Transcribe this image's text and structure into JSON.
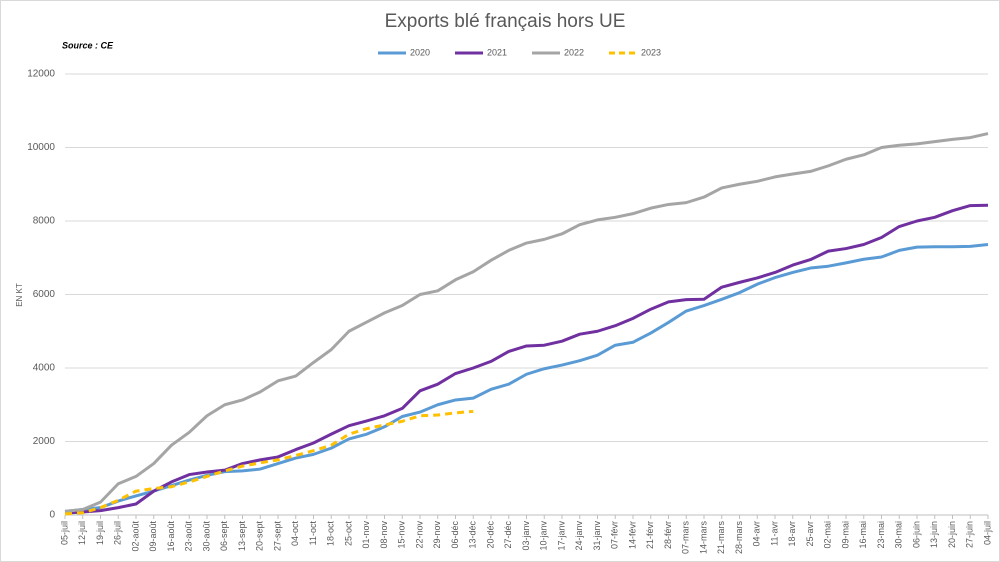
{
  "chart_data": {
    "type": "line",
    "title": "Exports blé français hors UE",
    "subtitle": "Source : CE",
    "y_label": "EN KT",
    "categories": [
      "05-juil",
      "12-juil",
      "19-juil",
      "26-juil",
      "02-août",
      "09-août",
      "16-août",
      "23-août",
      "30-août",
      "06-sept",
      "13-sept",
      "20-sept",
      "27-sept",
      "04-oct",
      "11-oct",
      "18-oct",
      "25-oct",
      "01-nov",
      "08-nov",
      "15-nov",
      "22-nov",
      "29-nov",
      "06-déc",
      "13-déc",
      "20-déc",
      "27-déc",
      "03-janv",
      "10-janv",
      "17-janv",
      "24-janv",
      "31-janv",
      "07-févr",
      "14-févr",
      "21-févr",
      "28-févr",
      "07-mars",
      "14-mars",
      "21-mars",
      "28-mars",
      "04-avr",
      "11-avr",
      "18-avr",
      "25-avr",
      "02-mai",
      "09-mai",
      "16-mai",
      "23-mai",
      "30-mai",
      "06-juin",
      "13-juin",
      "20-juin",
      "27-juin",
      "04-juil"
    ],
    "series": [
      {
        "name": "2020",
        "color": "#5b9bd5",
        "dashed": false,
        "values": [
          100,
          150,
          200,
          380,
          520,
          650,
          800,
          950,
          1080,
          1180,
          1200,
          1250,
          1400,
          1550,
          1650,
          1820,
          2070,
          2200,
          2400,
          2680,
          2800,
          3000,
          3130,
          3180,
          3420,
          3560,
          3830,
          3980,
          4080,
          4200,
          4350,
          4620,
          4700,
          4950,
          5240,
          5550,
          5700,
          5870,
          6050,
          6280,
          6460,
          6600,
          6720,
          6770,
          6860,
          6960,
          7020,
          7200,
          7290,
          7300,
          7300,
          7310,
          7360
        ]
      },
      {
        "name": "2021",
        "color": "#7030a0",
        "dashed": false,
        "values": [
          50,
          80,
          120,
          200,
          300,
          650,
          900,
          1100,
          1170,
          1220,
          1400,
          1500,
          1580,
          1780,
          1960,
          2200,
          2430,
          2560,
          2700,
          2900,
          3380,
          3560,
          3850,
          4000,
          4180,
          4450,
          4600,
          4620,
          4730,
          4920,
          5000,
          5150,
          5350,
          5600,
          5800,
          5860,
          5870,
          6200,
          6330,
          6450,
          6600,
          6800,
          6950,
          7180,
          7250,
          7360,
          7550,
          7850,
          8000,
          8100,
          8280,
          8420,
          8430
        ]
      },
      {
        "name": "2022",
        "color": "#a5a5a5",
        "dashed": false,
        "values": [
          100,
          150,
          350,
          850,
          1050,
          1400,
          1900,
          2250,
          2700,
          3000,
          3130,
          3350,
          3650,
          3780,
          4150,
          4500,
          5000,
          5250,
          5500,
          5700,
          6000,
          6100,
          6400,
          6620,
          6930,
          7200,
          7400,
          7500,
          7650,
          7900,
          8030,
          8100,
          8200,
          8350,
          8450,
          8500,
          8650,
          8900,
          9000,
          9080,
          9200,
          9280,
          9350,
          9500,
          9680,
          9800,
          10000,
          10060,
          10100,
          10160,
          10220,
          10270,
          10380
        ]
      },
      {
        "name": "2023",
        "color": "#ffc000",
        "dashed": true,
        "values": [
          30,
          60,
          200,
          400,
          650,
          720,
          770,
          900,
          1050,
          1200,
          1330,
          1420,
          1500,
          1620,
          1750,
          1900,
          2200,
          2350,
          2450,
          2550,
          2700,
          2720,
          2780,
          2820,
          null,
          null,
          null,
          null,
          null,
          null,
          null,
          null,
          null,
          null,
          null,
          null,
          null,
          null,
          null,
          null,
          null,
          null,
          null,
          null,
          null,
          null,
          null,
          null,
          null,
          null,
          null,
          null,
          null
        ]
      }
    ],
    "ylim": [
      0,
      12000
    ],
    "yticks": [
      0,
      2000,
      4000,
      6000,
      8000,
      10000,
      12000
    ],
    "grid": true,
    "legend": "top"
  }
}
